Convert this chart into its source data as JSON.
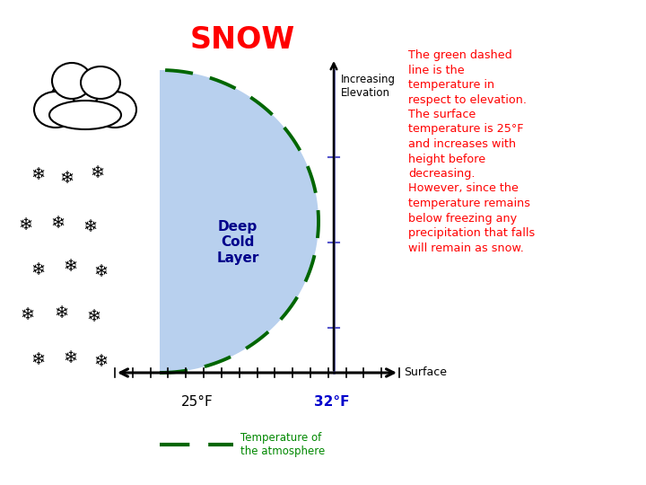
{
  "title": "SNOW",
  "title_color": "red",
  "title_fontsize": 24,
  "title_fontweight": "bold",
  "bg_color": "#ffffff",
  "diagram_area_color": "#b8d0ee",
  "green_dashed_color": "#006600",
  "blue_line_color": "#5555cc",
  "deep_cold_color": "#00008B",
  "temp_32_color": "#0000cc",
  "annotation_color": "red",
  "annotation_fontsize": 9.2,
  "annotation_text": "The green dashed\nline is the\ntemperature in\nrespect to elevation.\nThe surface\ntemperature is 25°F\nand increases with\nheight before\ndecreasing.\nHowever, since the\ntemperature remains\nbelow freezing any\nprecipitation that falls\nwill remain as snow.",
  "temp_25_label": "25°F",
  "temp_32_label": "32°F",
  "surface_label": "Surface",
  "increasing_elev_label": "Increasing\nElevation",
  "deep_cold_label": "Deep\nCold\nLayer",
  "legend_text": "Temperature of\nthe atmosphere",
  "legend_text_color": "#008800"
}
